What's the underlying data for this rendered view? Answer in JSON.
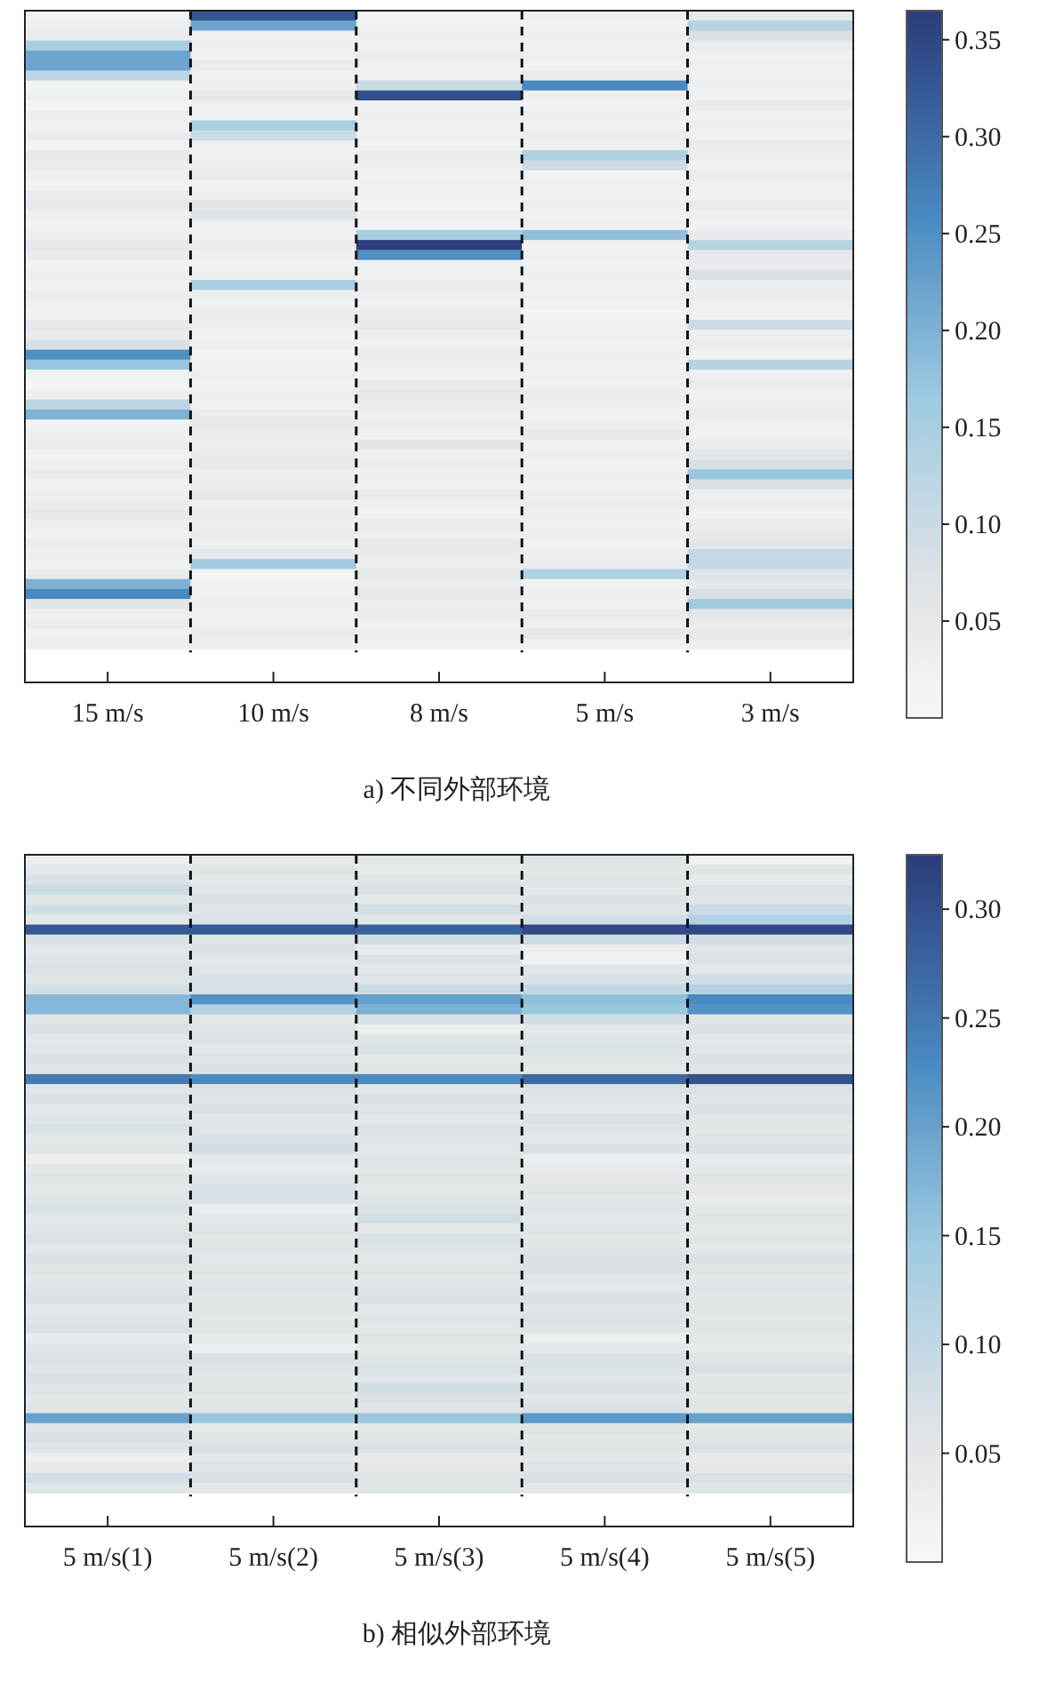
{
  "chart_data": [
    {
      "type": "heatmap",
      "xlabel": "a) 不同外部环境",
      "categories": [
        "15 m/s",
        "10 m/s",
        "8 m/s",
        "5 m/s",
        "3 m/s"
      ],
      "clim": [
        0,
        0.365
      ],
      "cticks": [
        {
          "value": 0.05,
          "label": "0.05"
        },
        {
          "value": 0.1,
          "label": "0.10"
        },
        {
          "value": 0.15,
          "label": "0.15"
        },
        {
          "value": 0.2,
          "label": "0.20"
        },
        {
          "value": 0.25,
          "label": "0.25"
        },
        {
          "value": 0.3,
          "label": "0.30"
        },
        {
          "value": 0.35,
          "label": "0.35"
        }
      ],
      "y_categories": [
        null,
        null,
        null,
        null,
        null,
        null,
        null,
        null,
        null,
        null,
        null,
        null,
        null,
        null,
        null,
        null,
        null,
        null,
        null,
        null,
        null,
        null,
        null,
        null,
        null,
        null,
        null,
        null,
        null,
        null,
        null,
        null,
        null,
        null,
        null,
        null,
        null,
        null,
        null,
        null,
        null,
        null,
        null,
        null,
        null,
        null,
        null,
        null,
        null,
        null,
        null,
        null,
        null,
        null,
        null,
        null,
        null,
        null,
        null,
        null,
        null,
        null,
        null,
        null
      ],
      "cells": [
        [
          0.02,
          0.33,
          0.01,
          0.03,
          0.05
        ],
        [
          0.03,
          0.22,
          0.02,
          0.02,
          0.13
        ],
        [
          0.04,
          0.02,
          0.03,
          0.03,
          0.08
        ],
        [
          0.15,
          0.03,
          0.02,
          0.02,
          0.04
        ],
        [
          0.22,
          0.02,
          0.04,
          0.03,
          0.02
        ],
        [
          0.22,
          0.04,
          0.03,
          0.02,
          0.03
        ],
        [
          0.12,
          0.02,
          0.02,
          0.04,
          0.02
        ],
        [
          0.02,
          0.03,
          0.1,
          0.26,
          0.03
        ],
        [
          0.03,
          0.05,
          0.34,
          0.03,
          0.02
        ],
        [
          0.01,
          0.03,
          0.02,
          0.02,
          0.04
        ],
        [
          0.03,
          0.02,
          0.03,
          0.03,
          0.02
        ],
        [
          0.02,
          0.15,
          0.02,
          0.02,
          0.03
        ],
        [
          0.04,
          0.1,
          0.03,
          0.04,
          0.02
        ],
        [
          0.02,
          0.03,
          0.02,
          0.03,
          0.04
        ],
        [
          0.05,
          0.02,
          0.04,
          0.14,
          0.03
        ],
        [
          0.04,
          0.03,
          0.03,
          0.1,
          0.02
        ],
        [
          0.03,
          0.04,
          0.02,
          0.02,
          0.04
        ],
        [
          0.02,
          0.02,
          0.03,
          0.03,
          0.03
        ],
        [
          0.04,
          0.03,
          0.02,
          0.02,
          0.02
        ],
        [
          0.05,
          0.06,
          0.01,
          0.03,
          0.04
        ],
        [
          0.03,
          0.07,
          0.03,
          0.02,
          0.03
        ],
        [
          0.02,
          0.03,
          0.02,
          0.03,
          0.02
        ],
        [
          0.03,
          0.02,
          0.15,
          0.18,
          0.04
        ],
        [
          0.05,
          0.04,
          0.36,
          0.02,
          0.13
        ],
        [
          0.04,
          0.03,
          0.25,
          0.03,
          0.05
        ],
        [
          0.02,
          0.02,
          0.03,
          0.02,
          0.04
        ],
        [
          0.03,
          0.03,
          0.02,
          0.03,
          0.08
        ],
        [
          0.02,
          0.15,
          0.04,
          0.02,
          0.03
        ],
        [
          0.04,
          0.03,
          0.03,
          0.03,
          0.04
        ],
        [
          0.03,
          0.02,
          0.02,
          0.02,
          0.03
        ],
        [
          0.02,
          0.04,
          0.04,
          0.01,
          0.02
        ],
        [
          0.05,
          0.03,
          0.05,
          0.02,
          0.1
        ],
        [
          0.04,
          0.02,
          0.03,
          0.03,
          0.03
        ],
        [
          0.08,
          0.03,
          0.02,
          0.02,
          0.04
        ],
        [
          0.25,
          0.01,
          0.04,
          0.03,
          0.02
        ],
        [
          0.17,
          0.02,
          0.03,
          0.02,
          0.13
        ],
        [
          0.02,
          0.03,
          0.02,
          0.03,
          0.03
        ],
        [
          0.01,
          0.02,
          0.04,
          0.02,
          0.04
        ],
        [
          0.03,
          0.03,
          0.05,
          0.04,
          0.02
        ],
        [
          0.12,
          0.02,
          0.04,
          0.03,
          0.03
        ],
        [
          0.2,
          0.04,
          0.03,
          0.02,
          0.04
        ],
        [
          0.02,
          0.05,
          0.04,
          0.03,
          0.03
        ],
        [
          0.03,
          0.04,
          0.02,
          0.05,
          0.02
        ],
        [
          0.04,
          0.03,
          0.06,
          0.02,
          0.04
        ],
        [
          0.02,
          0.04,
          0.03,
          0.03,
          0.06
        ],
        [
          0.03,
          0.05,
          0.04,
          0.02,
          0.08
        ],
        [
          0.04,
          0.03,
          0.03,
          0.03,
          0.17
        ],
        [
          0.02,
          0.04,
          0.02,
          0.02,
          0.08
        ],
        [
          0.03,
          0.05,
          0.04,
          0.03,
          0.03
        ],
        [
          0.04,
          0.03,
          0.03,
          0.04,
          0.04
        ],
        [
          0.05,
          0.04,
          0.02,
          0.03,
          0.02
        ],
        [
          0.03,
          0.03,
          0.04,
          0.02,
          0.04
        ],
        [
          0.02,
          0.04,
          0.03,
          0.03,
          0.05
        ],
        [
          0.04,
          0.03,
          0.05,
          0.02,
          0.06
        ],
        [
          0.03,
          0.05,
          0.04,
          0.03,
          0.11
        ],
        [
          0.02,
          0.16,
          0.03,
          0.04,
          0.11
        ],
        [
          0.04,
          0.01,
          0.05,
          0.14,
          0.07
        ],
        [
          0.2,
          0.02,
          0.04,
          0.02,
          0.05
        ],
        [
          0.26,
          0.02,
          0.05,
          0.03,
          0.08
        ],
        [
          0.06,
          0.03,
          0.03,
          0.02,
          0.16
        ],
        [
          0.03,
          0.02,
          0.04,
          0.04,
          0.06
        ],
        [
          0.04,
          0.03,
          0.02,
          0.03,
          0.04
        ],
        [
          0.02,
          0.04,
          0.03,
          0.05,
          0.05
        ],
        [
          0.03,
          0.03,
          0.02,
          0.02,
          0.03
        ]
      ]
    },
    {
      "type": "heatmap",
      "xlabel": "b) 相似外部环境",
      "categories": [
        "5 m/s(1)",
        "5 m/s(2)",
        "5 m/s(3)",
        "5 m/s(4)",
        "5 m/s(5)"
      ],
      "clim": [
        0,
        0.325
      ],
      "cticks": [
        {
          "value": 0.05,
          "label": "0.05"
        },
        {
          "value": 0.1,
          "label": "0.10"
        },
        {
          "value": 0.15,
          "label": "0.15"
        },
        {
          "value": 0.2,
          "label": "0.20"
        },
        {
          "value": 0.25,
          "label": "0.25"
        },
        {
          "value": 0.3,
          "label": "0.30"
        }
      ],
      "y_categories": [
        null,
        null,
        null,
        null,
        null,
        null,
        null,
        null,
        null,
        null,
        null,
        null,
        null,
        null,
        null,
        null,
        null,
        null,
        null,
        null,
        null,
        null,
        null,
        null,
        null,
        null,
        null,
        null,
        null,
        null,
        null,
        null,
        null,
        null,
        null,
        null,
        null,
        null,
        null,
        null,
        null,
        null,
        null,
        null,
        null,
        null,
        null,
        null,
        null,
        null,
        null,
        null,
        null,
        null,
        null,
        null,
        null,
        null,
        null,
        null,
        null,
        null,
        null,
        null
      ],
      "cells": [
        [
          0.03,
          0.04,
          0.05,
          0.06,
          0.02
        ],
        [
          0.05,
          0.06,
          0.04,
          0.05,
          0.06
        ],
        [
          0.07,
          0.05,
          0.06,
          0.06,
          0.04
        ],
        [
          0.09,
          0.06,
          0.07,
          0.05,
          0.07
        ],
        [
          0.06,
          0.07,
          0.05,
          0.07,
          0.06
        ],
        [
          0.08,
          0.06,
          0.08,
          0.06,
          0.09
        ],
        [
          0.05,
          0.07,
          0.06,
          0.08,
          0.12
        ],
        [
          0.29,
          0.29,
          0.28,
          0.31,
          0.31
        ],
        [
          0.07,
          0.06,
          0.08,
          0.09,
          0.08
        ],
        [
          0.05,
          0.07,
          0.04,
          0.03,
          0.06
        ],
        [
          0.06,
          0.05,
          0.07,
          0.02,
          0.07
        ],
        [
          0.07,
          0.06,
          0.05,
          0.06,
          0.05
        ],
        [
          0.06,
          0.07,
          0.06,
          0.07,
          0.08
        ],
        [
          0.08,
          0.07,
          0.09,
          0.1,
          0.12
        ],
        [
          0.17,
          0.22,
          0.2,
          0.16,
          0.23
        ],
        [
          0.17,
          0.12,
          0.18,
          0.15,
          0.22
        ],
        [
          0.06,
          0.05,
          0.07,
          0.08,
          0.06
        ],
        [
          0.07,
          0.06,
          0.03,
          0.05,
          0.07
        ],
        [
          0.05,
          0.07,
          0.06,
          0.06,
          0.05
        ],
        [
          0.06,
          0.05,
          0.07,
          0.07,
          0.06
        ],
        [
          0.07,
          0.06,
          0.05,
          0.06,
          0.07
        ],
        [
          0.06,
          0.07,
          0.06,
          0.05,
          0.06
        ],
        [
          0.25,
          0.23,
          0.23,
          0.27,
          0.3
        ],
        [
          0.06,
          0.07,
          0.06,
          0.07,
          0.07
        ],
        [
          0.07,
          0.06,
          0.07,
          0.06,
          0.06
        ],
        [
          0.05,
          0.07,
          0.06,
          0.05,
          0.07
        ],
        [
          0.06,
          0.05,
          0.05,
          0.07,
          0.06
        ],
        [
          0.07,
          0.06,
          0.07,
          0.06,
          0.05
        ],
        [
          0.05,
          0.07,
          0.06,
          0.05,
          0.06
        ],
        [
          0.06,
          0.08,
          0.05,
          0.07,
          0.07
        ],
        [
          0.03,
          0.05,
          0.06,
          0.03,
          0.04
        ],
        [
          0.05,
          0.04,
          0.05,
          0.04,
          0.05
        ],
        [
          0.06,
          0.06,
          0.06,
          0.05,
          0.06
        ],
        [
          0.05,
          0.07,
          0.05,
          0.06,
          0.05
        ],
        [
          0.06,
          0.07,
          0.06,
          0.05,
          0.04
        ],
        [
          0.07,
          0.03,
          0.07,
          0.06,
          0.05
        ],
        [
          0.05,
          0.05,
          0.08,
          0.05,
          0.06
        ],
        [
          0.06,
          0.06,
          0.05,
          0.06,
          0.05
        ],
        [
          0.07,
          0.05,
          0.07,
          0.05,
          0.06
        ],
        [
          0.05,
          0.06,
          0.06,
          0.06,
          0.05
        ],
        [
          0.07,
          0.05,
          0.05,
          0.07,
          0.07
        ],
        [
          0.06,
          0.06,
          0.06,
          0.07,
          0.06
        ],
        [
          0.05,
          0.05,
          0.05,
          0.06,
          0.05
        ],
        [
          0.06,
          0.06,
          0.06,
          0.05,
          0.06
        ],
        [
          0.07,
          0.05,
          0.07,
          0.07,
          0.05
        ],
        [
          0.05,
          0.06,
          0.05,
          0.06,
          0.06
        ],
        [
          0.06,
          0.05,
          0.06,
          0.07,
          0.05
        ],
        [
          0.07,
          0.06,
          0.05,
          0.06,
          0.06
        ],
        [
          0.04,
          0.04,
          0.06,
          0.03,
          0.05
        ],
        [
          0.06,
          0.03,
          0.05,
          0.05,
          0.04
        ],
        [
          0.07,
          0.07,
          0.06,
          0.07,
          0.06
        ],
        [
          0.06,
          0.06,
          0.07,
          0.07,
          0.07
        ],
        [
          0.07,
          0.05,
          0.06,
          0.06,
          0.05
        ],
        [
          0.06,
          0.06,
          0.08,
          0.07,
          0.06
        ],
        [
          0.05,
          0.05,
          0.07,
          0.06,
          0.05
        ],
        [
          0.06,
          0.06,
          0.06,
          0.07,
          0.06
        ],
        [
          0.2,
          0.15,
          0.15,
          0.21,
          0.2
        ],
        [
          0.06,
          0.04,
          0.05,
          0.06,
          0.05
        ],
        [
          0.07,
          0.06,
          0.06,
          0.05,
          0.06
        ],
        [
          0.06,
          0.07,
          0.07,
          0.06,
          0.07
        ],
        [
          0.03,
          0.05,
          0.04,
          0.05,
          0.04
        ],
        [
          0.04,
          0.06,
          0.05,
          0.06,
          0.05
        ],
        [
          0.08,
          0.07,
          0.06,
          0.07,
          0.07
        ],
        [
          0.06,
          0.05,
          0.06,
          0.05,
          0.06
        ]
      ]
    }
  ]
}
